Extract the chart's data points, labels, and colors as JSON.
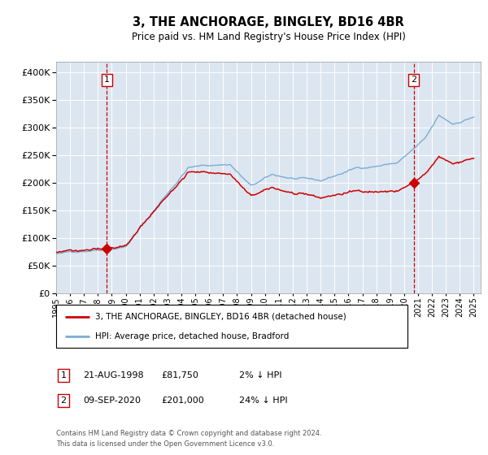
{
  "title": "3, THE ANCHORAGE, BINGLEY, BD16 4BR",
  "subtitle": "Price paid vs. HM Land Registry's House Price Index (HPI)",
  "sale1_date": "21-AUG-1998",
  "sale1_price": 81750,
  "sale1_year": 1998.64,
  "sale2_date": "09-SEP-2020",
  "sale2_price": 201000,
  "sale2_year": 2020.69,
  "legend_line1": "3, THE ANCHORAGE, BINGLEY, BD16 4BR (detached house)",
  "legend_line2": "HPI: Average price, detached house, Bradford",
  "sale1_annot_date": "21-AUG-1998",
  "sale1_annot_price": "£81,750",
  "sale1_annot_hpi": "2% ↓ HPI",
  "sale2_annot_date": "09-SEP-2020",
  "sale2_annot_price": "£201,000",
  "sale2_annot_hpi": "24% ↓ HPI",
  "footnote_line1": "Contains HM Land Registry data © Crown copyright and database right 2024.",
  "footnote_line2": "This data is licensed under the Open Government Licence v3.0.",
  "hpi_line_color": "#7aadd4",
  "price_line_color": "#cc0000",
  "dot_color": "#cc0000",
  "plot_bg": "#dce6f1",
  "grid_color": "#ffffff",
  "vline_color": "#cc0000",
  "ylim": [
    0,
    420000
  ],
  "xlim_start": 1995.0,
  "xlim_end": 2025.5,
  "yticks": [
    0,
    50000,
    100000,
    150000,
    200000,
    250000,
    300000,
    350000,
    400000
  ],
  "xtick_years": [
    1995,
    1996,
    1997,
    1998,
    1999,
    2000,
    2001,
    2002,
    2003,
    2004,
    2005,
    2006,
    2007,
    2008,
    2009,
    2010,
    2011,
    2012,
    2013,
    2014,
    2015,
    2016,
    2017,
    2018,
    2019,
    2020,
    2021,
    2022,
    2023,
    2024,
    2025
  ]
}
